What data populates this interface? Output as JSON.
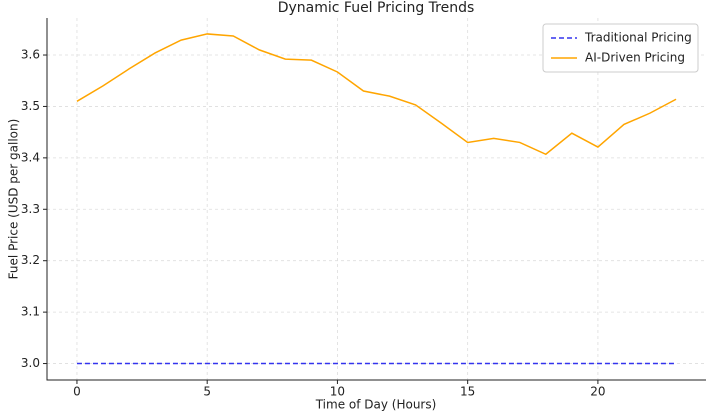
{
  "chart_data": {
    "type": "line",
    "title": "Dynamic Fuel Pricing Trends",
    "x_label": "Time of Day (Hours)",
    "y_label": "Fuel Price (USD per gallon)",
    "x": [
      0,
      1,
      2,
      3,
      4,
      5,
      6,
      7,
      8,
      9,
      10,
      11,
      12,
      13,
      14,
      15,
      16,
      17,
      18,
      19,
      20,
      21,
      22,
      23
    ],
    "series": [
      {
        "name": "Traditional Pricing",
        "color": "#3333ee",
        "dash": true,
        "values": [
          3.0,
          3.0,
          3.0,
          3.0,
          3.0,
          3.0,
          3.0,
          3.0,
          3.0,
          3.0,
          3.0,
          3.0,
          3.0,
          3.0,
          3.0,
          3.0,
          3.0,
          3.0,
          3.0,
          3.0,
          3.0,
          3.0,
          3.0,
          3.0
        ]
      },
      {
        "name": "AI-Driven Pricing",
        "color": "#ffa500",
        "dash": false,
        "values": [
          3.51,
          3.54,
          3.573,
          3.604,
          3.629,
          3.641,
          3.637,
          3.61,
          3.592,
          3.59,
          3.567,
          3.53,
          3.52,
          3.503,
          3.467,
          3.43,
          3.438,
          3.43,
          3.407,
          3.448,
          3.421,
          3.465,
          3.487,
          3.514
        ]
      }
    ],
    "xlim": [
      -1.15,
      24.15
    ],
    "xticks": [
      0,
      5,
      10,
      15,
      20
    ],
    "ylim": [
      2.968,
      3.672
    ],
    "yticks": [
      {
        "value": 3.0,
        "label": "3.0"
      },
      3.1,
      3.2,
      3.3,
      3.4,
      3.5,
      3.6
    ],
    "grid": true,
    "legend": "upper-right"
  }
}
